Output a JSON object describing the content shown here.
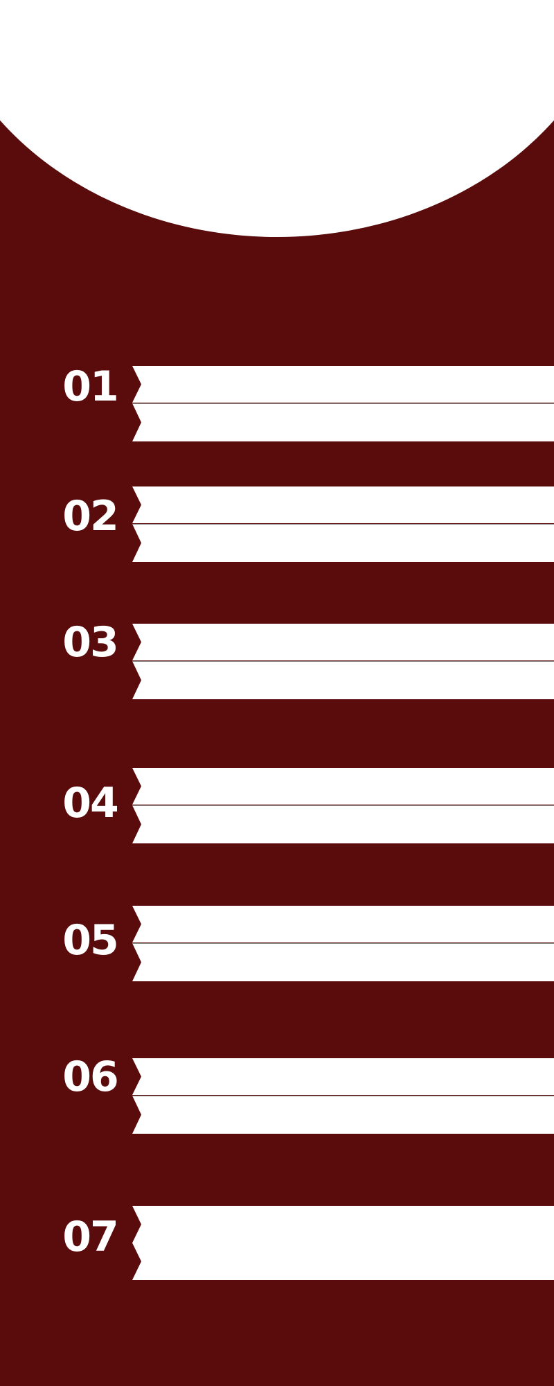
{
  "steps": [
    {
      "number": "01"
    },
    {
      "number": "02"
    },
    {
      "number": "03"
    },
    {
      "number": "04"
    },
    {
      "number": "05"
    },
    {
      "number": "06"
    },
    {
      "number": "07"
    }
  ],
  "colors": {
    "background": "#5a0b0c",
    "banner": "#ffffff",
    "divider": "#8a8a8a",
    "number": "#ffffff"
  }
}
